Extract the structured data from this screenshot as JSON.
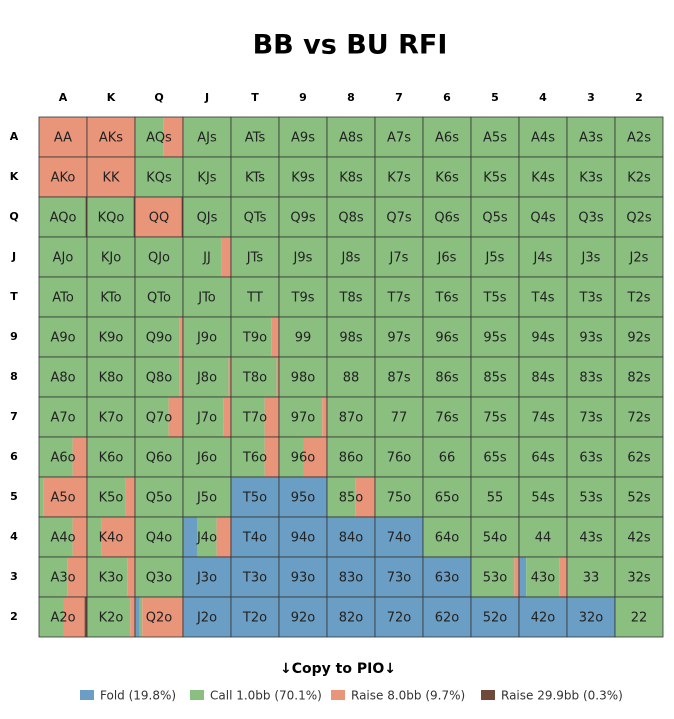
{
  "title": "BB vs BU RFI",
  "column_headers": [
    "A",
    "K",
    "Q",
    "J",
    "T",
    "9",
    "8",
    "7",
    "6",
    "5",
    "4",
    "3",
    "2"
  ],
  "row_headers": [
    "A",
    "K",
    "Q",
    "J",
    "T",
    "9",
    "8",
    "7",
    "6",
    "5",
    "4",
    "3",
    "2"
  ],
  "grid": {
    "hands": [
      [
        "AA",
        "AKs",
        "AQs",
        "AJs",
        "ATs",
        "A9s",
        "A8s",
        "A7s",
        "A6s",
        "A5s",
        "A4s",
        "A3s",
        "A2s"
      ],
      [
        "AKo",
        "KK",
        "KQs",
        "KJs",
        "KTs",
        "K9s",
        "K8s",
        "K7s",
        "K6s",
        "K5s",
        "K4s",
        "K3s",
        "K2s"
      ],
      [
        "AQo",
        "KQo",
        "QQ",
        "QJs",
        "QTs",
        "Q9s",
        "Q8s",
        "Q7s",
        "Q6s",
        "Q5s",
        "Q4s",
        "Q3s",
        "Q2s"
      ],
      [
        "AJo",
        "KJo",
        "QJo",
        "JJ",
        "JTs",
        "J9s",
        "J8s",
        "J7s",
        "J6s",
        "J5s",
        "J4s",
        "J3s",
        "J2s"
      ],
      [
        "ATo",
        "KTo",
        "QTo",
        "JTo",
        "TT",
        "T9s",
        "T8s",
        "T7s",
        "T6s",
        "T5s",
        "T4s",
        "T3s",
        "T2s"
      ],
      [
        "A9o",
        "K9o",
        "Q9o",
        "J9o",
        "T9o",
        "99",
        "98s",
        "97s",
        "96s",
        "95s",
        "94s",
        "93s",
        "92s"
      ],
      [
        "A8o",
        "K8o",
        "Q8o",
        "J8o",
        "T8o",
        "98o",
        "88",
        "87s",
        "86s",
        "85s",
        "84s",
        "83s",
        "82s"
      ],
      [
        "A7o",
        "K7o",
        "Q7o",
        "J7o",
        "T7o",
        "97o",
        "87o",
        "77",
        "76s",
        "75s",
        "74s",
        "73s",
        "72s"
      ],
      [
        "A6o",
        "K6o",
        "Q6o",
        "J6o",
        "T6o",
        "96o",
        "86o",
        "76o",
        "66",
        "65s",
        "64s",
        "63s",
        "62s"
      ],
      [
        "A5o",
        "K5o",
        "Q5o",
        "J5o",
        "T5o",
        "95o",
        "85o",
        "75o",
        "65o",
        "55",
        "54s",
        "53s",
        "52s"
      ],
      [
        "A4o",
        "K4o",
        "Q4o",
        "J4o",
        "T4o",
        "94o",
        "84o",
        "74o",
        "64o",
        "54o",
        "44",
        "43s",
        "42s"
      ],
      [
        "A3o",
        "K3o",
        "Q3o",
        "J3o",
        "T3o",
        "93o",
        "83o",
        "73o",
        "63o",
        "53o",
        "43o",
        "33",
        "32s"
      ],
      [
        "A2o",
        "K2o",
        "Q2o",
        "J2o",
        "T2o",
        "92o",
        "82o",
        "72o",
        "62o",
        "52o",
        "42o",
        "32o",
        "22"
      ]
    ],
    "frequencies": [
      [
        [
          0,
          0,
          100,
          0
        ],
        [
          0,
          0,
          100,
          0
        ],
        [
          0,
          60,
          40,
          0
        ],
        [
          0,
          100,
          0,
          0
        ],
        [
          0,
          100,
          0,
          0
        ],
        [
          0,
          100,
          0,
          0
        ],
        [
          0,
          100,
          0,
          0
        ],
        [
          0,
          100,
          0,
          0
        ],
        [
          0,
          100,
          0,
          0
        ],
        [
          0,
          100,
          0,
          0
        ],
        [
          0,
          100,
          0,
          0
        ],
        [
          0,
          100,
          0,
          0
        ],
        [
          0,
          100,
          0,
          0
        ]
      ],
      [
        [
          0,
          0,
          100,
          0
        ],
        [
          0,
          0,
          100,
          0
        ],
        [
          0,
          100,
          0,
          0
        ],
        [
          0,
          100,
          0,
          0
        ],
        [
          0,
          100,
          0,
          0
        ],
        [
          0,
          100,
          0,
          0
        ],
        [
          0,
          100,
          0,
          0
        ],
        [
          0,
          100,
          0,
          0
        ],
        [
          0,
          100,
          0,
          0
        ],
        [
          0,
          100,
          0,
          0
        ],
        [
          0,
          100,
          0,
          0
        ],
        [
          0,
          100,
          0,
          0
        ],
        [
          0,
          100,
          0,
          0
        ]
      ],
      [
        [
          0,
          97,
          0,
          3
        ],
        [
          0,
          97,
          0,
          3
        ],
        [
          0,
          0,
          97,
          3
        ],
        [
          0,
          100,
          0,
          0
        ],
        [
          0,
          100,
          0,
          0
        ],
        [
          0,
          100,
          0,
          0
        ],
        [
          0,
          100,
          0,
          0
        ],
        [
          0,
          100,
          0,
          0
        ],
        [
          0,
          100,
          0,
          0
        ],
        [
          0,
          100,
          0,
          0
        ],
        [
          0,
          100,
          0,
          0
        ],
        [
          0,
          100,
          0,
          0
        ],
        [
          0,
          100,
          0,
          0
        ]
      ],
      [
        [
          0,
          100,
          0,
          0
        ],
        [
          0,
          100,
          0,
          0
        ],
        [
          0,
          100,
          0,
          0
        ],
        [
          0,
          80,
          20,
          0
        ],
        [
          0,
          100,
          0,
          0
        ],
        [
          0,
          100,
          0,
          0
        ],
        [
          0,
          100,
          0,
          0
        ],
        [
          0,
          100,
          0,
          0
        ],
        [
          0,
          100,
          0,
          0
        ],
        [
          0,
          100,
          0,
          0
        ],
        [
          0,
          100,
          0,
          0
        ],
        [
          0,
          100,
          0,
          0
        ],
        [
          0,
          100,
          0,
          0
        ]
      ],
      [
        [
          0,
          100,
          0,
          0
        ],
        [
          0,
          100,
          0,
          0
        ],
        [
          0,
          100,
          0,
          0
        ],
        [
          0,
          100,
          0,
          0
        ],
        [
          0,
          100,
          0,
          0
        ],
        [
          0,
          100,
          0,
          0
        ],
        [
          0,
          100,
          0,
          0
        ],
        [
          0,
          100,
          0,
          0
        ],
        [
          0,
          100,
          0,
          0
        ],
        [
          0,
          100,
          0,
          0
        ],
        [
          0,
          100,
          0,
          0
        ],
        [
          0,
          100,
          0,
          0
        ],
        [
          0,
          100,
          0,
          0
        ]
      ],
      [
        [
          0,
          100,
          0,
          0
        ],
        [
          0,
          100,
          0,
          0
        ],
        [
          0,
          92,
          8,
          0
        ],
        [
          0,
          100,
          0,
          0
        ],
        [
          0,
          85,
          15,
          0
        ],
        [
          0,
          100,
          0,
          0
        ],
        [
          0,
          100,
          0,
          0
        ],
        [
          0,
          100,
          0,
          0
        ],
        [
          0,
          100,
          0,
          0
        ],
        [
          0,
          100,
          0,
          0
        ],
        [
          0,
          100,
          0,
          0
        ],
        [
          0,
          100,
          0,
          0
        ],
        [
          0,
          100,
          0,
          0
        ]
      ],
      [
        [
          0,
          100,
          0,
          0
        ],
        [
          0,
          100,
          0,
          0
        ],
        [
          0,
          92,
          8,
          0
        ],
        [
          0,
          95,
          5,
          0
        ],
        [
          0,
          95,
          5,
          0
        ],
        [
          0,
          100,
          0,
          0
        ],
        [
          0,
          100,
          0,
          0
        ],
        [
          0,
          100,
          0,
          0
        ],
        [
          0,
          100,
          0,
          0
        ],
        [
          0,
          100,
          0,
          0
        ],
        [
          0,
          100,
          0,
          0
        ],
        [
          0,
          100,
          0,
          0
        ],
        [
          0,
          100,
          0,
          0
        ]
      ],
      [
        [
          0,
          100,
          0,
          0
        ],
        [
          0,
          100,
          0,
          0
        ],
        [
          0,
          70,
          30,
          0
        ],
        [
          0,
          85,
          15,
          0
        ],
        [
          0,
          70,
          30,
          0
        ],
        [
          0,
          90,
          10,
          0
        ],
        [
          0,
          100,
          0,
          0
        ],
        [
          0,
          100,
          0,
          0
        ],
        [
          0,
          100,
          0,
          0
        ],
        [
          0,
          100,
          0,
          0
        ],
        [
          0,
          100,
          0,
          0
        ],
        [
          0,
          100,
          0,
          0
        ],
        [
          0,
          100,
          0,
          0
        ]
      ],
      [
        [
          0,
          70,
          30,
          0
        ],
        [
          0,
          100,
          0,
          0
        ],
        [
          0,
          100,
          0,
          0
        ],
        [
          0,
          100,
          0,
          0
        ],
        [
          0,
          70,
          30,
          0
        ],
        [
          0,
          50,
          50,
          0
        ],
        [
          0,
          100,
          0,
          0
        ],
        [
          0,
          100,
          0,
          0
        ],
        [
          0,
          100,
          0,
          0
        ],
        [
          0,
          100,
          0,
          0
        ],
        [
          0,
          100,
          0,
          0
        ],
        [
          0,
          100,
          0,
          0
        ],
        [
          0,
          100,
          0,
          0
        ]
      ],
      [
        [
          0,
          10,
          90,
          0
        ],
        [
          0,
          80,
          20,
          0
        ],
        [
          0,
          100,
          0,
          0
        ],
        [
          0,
          100,
          0,
          0
        ],
        [
          100,
          0,
          0,
          0
        ],
        [
          100,
          0,
          0,
          0
        ],
        [
          0,
          60,
          40,
          0
        ],
        [
          0,
          100,
          0,
          0
        ],
        [
          0,
          100,
          0,
          0
        ],
        [
          0,
          100,
          0,
          0
        ],
        [
          0,
          100,
          0,
          0
        ],
        [
          0,
          100,
          0,
          0
        ],
        [
          0,
          100,
          0,
          0
        ]
      ],
      [
        [
          0,
          70,
          30,
          0
        ],
        [
          0,
          30,
          70,
          0
        ],
        [
          0,
          100,
          0,
          0
        ],
        [
          30,
          40,
          30,
          0
        ],
        [
          100,
          0,
          0,
          0
        ],
        [
          100,
          0,
          0,
          0
        ],
        [
          100,
          0,
          0,
          0
        ],
        [
          100,
          0,
          0,
          0
        ],
        [
          0,
          100,
          0,
          0
        ],
        [
          0,
          100,
          0,
          0
        ],
        [
          0,
          100,
          0,
          0
        ],
        [
          0,
          100,
          0,
          0
        ],
        [
          0,
          100,
          0,
          0
        ]
      ],
      [
        [
          0,
          60,
          40,
          0
        ],
        [
          0,
          85,
          15,
          0
        ],
        [
          0,
          100,
          0,
          0
        ],
        [
          100,
          0,
          0,
          0
        ],
        [
          100,
          0,
          0,
          0
        ],
        [
          100,
          0,
          0,
          0
        ],
        [
          100,
          0,
          0,
          0
        ],
        [
          100,
          0,
          0,
          0
        ],
        [
          100,
          0,
          0,
          0
        ],
        [
          0,
          90,
          10,
          0
        ],
        [
          15,
          70,
          15,
          0
        ],
        [
          0,
          100,
          0,
          0
        ],
        [
          0,
          100,
          0,
          0
        ]
      ],
      [
        [
          0,
          50,
          45,
          5
        ],
        [
          0,
          90,
          10,
          0
        ],
        [
          10,
          5,
          85,
          0
        ],
        [
          100,
          0,
          0,
          0
        ],
        [
          100,
          0,
          0,
          0
        ],
        [
          100,
          0,
          0,
          0
        ],
        [
          100,
          0,
          0,
          0
        ],
        [
          100,
          0,
          0,
          0
        ],
        [
          100,
          0,
          0,
          0
        ],
        [
          100,
          0,
          0,
          0
        ],
        [
          100,
          0,
          0,
          0
        ],
        [
          100,
          0,
          0,
          0
        ],
        [
          0,
          100,
          0,
          0
        ]
      ]
    ]
  },
  "copy_button": "↓Copy to PIO↓",
  "legend": [
    {
      "label": "Fold (19.8%)",
      "color": "#6a9ec4"
    },
    {
      "label": "Call 1.0bb (70.1%)",
      "color": "#8abf80"
    },
    {
      "label": "Raise 8.0bb (9.7%)",
      "color": "#e8957a"
    },
    {
      "label": "Raise 29.9bb (0.3%)",
      "color": "#6e4a3a"
    }
  ]
}
